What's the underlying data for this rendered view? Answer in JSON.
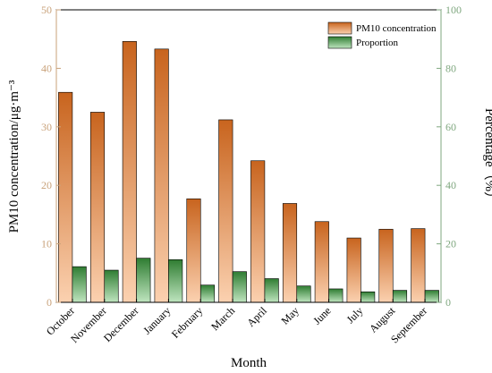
{
  "chart_data": {
    "type": "bar",
    "xlabel": "Month",
    "ylabel_left": "PM10 concentration/μg·m⁻³",
    "ylabel_right": "Percentage（%）",
    "ylim_left": [
      0,
      50
    ],
    "ylim_right": [
      0,
      100
    ],
    "yticks_left": [
      0,
      10,
      20,
      30,
      40,
      50
    ],
    "yticks_right": [
      0,
      20,
      40,
      60,
      80,
      100
    ],
    "grid": false,
    "legend_position": "top-right",
    "categories": [
      "October",
      "November",
      "December",
      "January",
      "February",
      "March",
      "April",
      "May",
      "June",
      "July",
      "August",
      "September"
    ],
    "series": [
      {
        "name": "PM10 concentration",
        "axis": "left",
        "color_top": "#c8641e",
        "color_bottom": "#fbd1b0",
        "values": [
          35.9,
          32.5,
          44.6,
          43.3,
          17.7,
          31.2,
          24.2,
          16.9,
          13.8,
          11.0,
          12.5,
          12.6
        ]
      },
      {
        "name": "Proportion",
        "axis": "right",
        "color_top": "#2f7d32",
        "color_bottom": "#bfe5bf",
        "values": [
          12.2,
          11.0,
          15.1,
          14.6,
          5.9,
          10.5,
          8.1,
          5.6,
          4.6,
          3.6,
          4.1,
          4.1
        ]
      }
    ]
  }
}
